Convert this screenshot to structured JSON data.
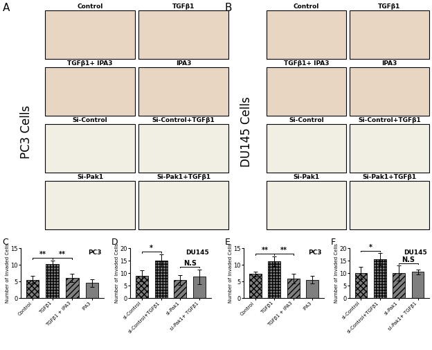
{
  "image_panels": [
    {
      "label": "A",
      "cell_line": "PC3 Cells",
      "images": [
        "Control",
        "TGFβ1",
        "TGFβ1+ IPA3",
        "IPA3",
        "Si-Control",
        "Si-Control+TGFβ1",
        "Si-Pak1",
        "Si-Pak1+TGFβ1"
      ]
    },
    {
      "label": "B",
      "cell_line": "DU145 Cells",
      "images": [
        "Control",
        "TGFβ1",
        "TGFβ1+ IPA3",
        "IPA3",
        "Si-Control",
        "Si-Control+TGFβ1",
        "Si-Pak1",
        "Si-Pak1+TGFβ1"
      ]
    }
  ],
  "chart_data": [
    {
      "type": "bar",
      "panel": "C",
      "title": "PC3",
      "y_label": "Number of Invaded Cells",
      "categories": [
        "Control",
        "TGFβ1",
        "TGFβ1 + IPA3",
        "IPA3"
      ],
      "values": [
        5.5,
        10.3,
        6.0,
        4.5
      ],
      "errors": [
        1.2,
        1.0,
        1.3,
        1.2
      ],
      "color": "#7f7f7f",
      "ylim": [
        0,
        15
      ],
      "yticks": [
        0,
        5,
        10,
        15
      ],
      "significance": [
        {
          "from": 0,
          "to": 1,
          "label": "**"
        },
        {
          "from": 1,
          "to": 2,
          "label": "**"
        }
      ]
    },
    {
      "type": "bar",
      "panel": "D",
      "title": "DU145",
      "y_label": "Number of Invaded Cells",
      "categories": [
        "si-Control",
        "si-Control+TGFβ1",
        "si-Pak1",
        "si-Pak1+ TGFβ1"
      ],
      "values": [
        8.8,
        15.0,
        7.3,
        8.5
      ],
      "errors": [
        2.2,
        2.5,
        2.0,
        3.0
      ],
      "color": "#7f7f7f",
      "ylim": [
        0,
        20
      ],
      "yticks": [
        0,
        5,
        10,
        15,
        20
      ],
      "significance": [
        {
          "from": 0,
          "to": 1,
          "label": "*"
        },
        {
          "from": 2,
          "to": 3,
          "label": "N.S"
        }
      ]
    },
    {
      "type": "bar",
      "panel": "E",
      "title": "PC3",
      "y_label": "Number of Invaded Cells",
      "categories": [
        "Control",
        "TGFβ1",
        "TGFβ1 + IPA3",
        "IPA3"
      ],
      "values": [
        7.2,
        11.0,
        5.8,
        5.5
      ],
      "errors": [
        0.8,
        1.5,
        1.5,
        1.2
      ],
      "color": "#7f7f7f",
      "ylim": [
        0,
        15
      ],
      "yticks": [
        0,
        5,
        10,
        15
      ],
      "significance": [
        {
          "from": 0,
          "to": 1,
          "label": "**"
        },
        {
          "from": 1,
          "to": 2,
          "label": "**"
        }
      ]
    },
    {
      "type": "bar",
      "panel": "F",
      "title": "DU145",
      "y_label": "Number of Invaded Cells",
      "categories": [
        "si-Control",
        "si-Control+TGFβ1",
        "si-Pak1",
        "si-Pak1+ TGFβ1"
      ],
      "values": [
        10.0,
        15.5,
        10.0,
        10.5
      ],
      "errors": [
        2.5,
        2.5,
        3.0,
        1.0
      ],
      "color": "#7f7f7f",
      "ylim": [
        0,
        20
      ],
      "yticks": [
        0,
        5,
        10,
        15,
        20
      ],
      "significance": [
        {
          "from": 0,
          "to": 1,
          "label": "*"
        },
        {
          "from": 2,
          "to": 3,
          "label": "N.S"
        }
      ]
    }
  ]
}
